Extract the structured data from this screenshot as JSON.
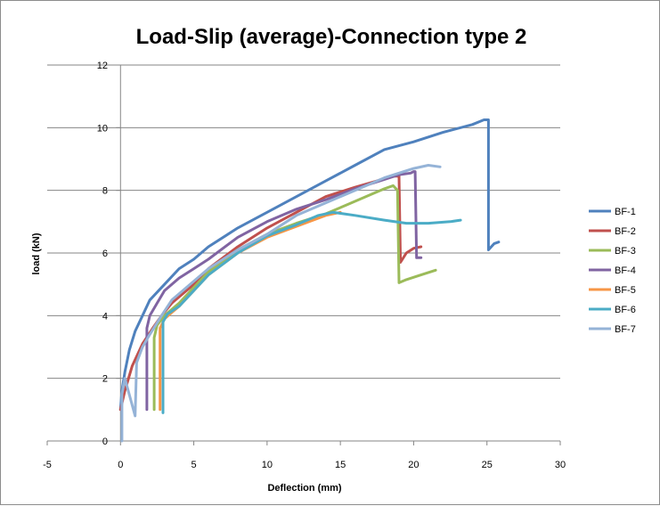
{
  "chart_data": {
    "type": "line",
    "title": "Load-Slip (average)-Connection type 2",
    "xlabel": "Deflection (mm)",
    "ylabel": "load (kN)",
    "xlim": [
      -5,
      30
    ],
    "ylim": [
      0,
      12
    ],
    "xticks": [
      "-5",
      "0",
      "5",
      "10",
      "15",
      "20",
      "25",
      "30"
    ],
    "yticks": [
      "0",
      "2",
      "4",
      "6",
      "8",
      "10",
      "12"
    ],
    "grid": "horizontal",
    "legend_position": "right",
    "series": [
      {
        "name": "BF-1",
        "color": "#4F81BD",
        "points": [
          [
            0,
            1.0
          ],
          [
            0.1,
            1.6
          ],
          [
            0.3,
            2.2
          ],
          [
            0.6,
            2.9
          ],
          [
            1.0,
            3.5
          ],
          [
            1.5,
            4.0
          ],
          [
            2.0,
            4.5
          ],
          [
            3.0,
            5.0
          ],
          [
            4.0,
            5.5
          ],
          [
            5.0,
            5.8
          ],
          [
            6.0,
            6.2
          ],
          [
            8.0,
            6.8
          ],
          [
            10.0,
            7.3
          ],
          [
            12.0,
            7.8
          ],
          [
            14.0,
            8.3
          ],
          [
            16.0,
            8.8
          ],
          [
            18.0,
            9.3
          ],
          [
            20.0,
            9.55
          ],
          [
            22.0,
            9.85
          ],
          [
            24.0,
            10.1
          ],
          [
            24.8,
            10.25
          ],
          [
            25.1,
            10.25
          ],
          [
            25.1,
            6.1
          ],
          [
            25.5,
            6.3
          ],
          [
            25.8,
            6.35
          ]
        ]
      },
      {
        "name": "BF-2",
        "color": "#C0504D",
        "points": [
          [
            0,
            1.0
          ],
          [
            0.3,
            1.6
          ],
          [
            0.8,
            2.4
          ],
          [
            1.5,
            3.1
          ],
          [
            2.2,
            3.6
          ],
          [
            2.8,
            4.0
          ],
          [
            3.5,
            4.4
          ],
          [
            4.0,
            4.6
          ],
          [
            5.0,
            5.0
          ],
          [
            6.0,
            5.5
          ],
          [
            8.0,
            6.2
          ],
          [
            10.0,
            6.8
          ],
          [
            12.0,
            7.3
          ],
          [
            14.0,
            7.8
          ],
          [
            16.0,
            8.1
          ],
          [
            17.5,
            8.3
          ],
          [
            18.5,
            8.45
          ],
          [
            19.0,
            8.45
          ],
          [
            19.1,
            5.7
          ],
          [
            19.5,
            6.0
          ],
          [
            20.0,
            6.15
          ],
          [
            20.5,
            6.2
          ]
        ]
      },
      {
        "name": "BF-3",
        "color": "#9BBB59",
        "points": [
          [
            2.3,
            1.0
          ],
          [
            2.3,
            3.3
          ],
          [
            2.5,
            3.7
          ],
          [
            3.0,
            4.0
          ],
          [
            4.0,
            4.4
          ],
          [
            5.0,
            4.9
          ],
          [
            6.0,
            5.4
          ],
          [
            8.0,
            6.1
          ],
          [
            10.0,
            6.6
          ],
          [
            12.0,
            6.95
          ],
          [
            14.0,
            7.25
          ],
          [
            15.5,
            7.55
          ],
          [
            17.0,
            7.85
          ],
          [
            18.0,
            8.05
          ],
          [
            18.6,
            8.15
          ],
          [
            18.9,
            8.0
          ],
          [
            19.0,
            5.05
          ],
          [
            19.5,
            5.15
          ],
          [
            20.5,
            5.3
          ],
          [
            21.5,
            5.45
          ]
        ]
      },
      {
        "name": "BF-4",
        "color": "#8064A2",
        "points": [
          [
            1.8,
            1.0
          ],
          [
            1.8,
            3.6
          ],
          [
            2.0,
            4.0
          ],
          [
            2.5,
            4.4
          ],
          [
            3.0,
            4.8
          ],
          [
            4.0,
            5.2
          ],
          [
            5.0,
            5.5
          ],
          [
            6.0,
            5.8
          ],
          [
            8.0,
            6.5
          ],
          [
            10.0,
            7.0
          ],
          [
            12.0,
            7.4
          ],
          [
            14.0,
            7.7
          ],
          [
            16.0,
            8.05
          ],
          [
            18.0,
            8.35
          ],
          [
            19.0,
            8.5
          ],
          [
            19.8,
            8.55
          ],
          [
            20.0,
            8.6
          ],
          [
            20.1,
            8.6
          ],
          [
            20.2,
            5.85
          ],
          [
            20.5,
            5.85
          ]
        ]
      },
      {
        "name": "BF-5",
        "color": "#F79646",
        "points": [
          [
            2.7,
            1.0
          ],
          [
            2.7,
            3.6
          ],
          [
            3.0,
            3.9
          ],
          [
            3.5,
            4.1
          ],
          [
            4.0,
            4.3
          ],
          [
            5.0,
            4.8
          ],
          [
            6.0,
            5.3
          ],
          [
            8.0,
            6.0
          ],
          [
            10.0,
            6.5
          ],
          [
            12.0,
            6.85
          ],
          [
            14.0,
            7.2
          ],
          [
            15.0,
            7.3
          ]
        ]
      },
      {
        "name": "BF-6",
        "color": "#4BACC6",
        "points": [
          [
            2.9,
            0.9
          ],
          [
            2.9,
            3.8
          ],
          [
            3.2,
            4.05
          ],
          [
            4.0,
            4.3
          ],
          [
            5.0,
            4.8
          ],
          [
            6.0,
            5.3
          ],
          [
            8.0,
            6.0
          ],
          [
            10.0,
            6.55
          ],
          [
            12.0,
            6.9
          ],
          [
            13.5,
            7.2
          ],
          [
            14.5,
            7.3
          ],
          [
            16.0,
            7.2
          ],
          [
            18.0,
            7.05
          ],
          [
            19.5,
            6.95
          ],
          [
            21.0,
            6.95
          ],
          [
            22.5,
            7.0
          ],
          [
            23.2,
            7.05
          ]
        ]
      },
      {
        "name": "BF-7",
        "color": "#95B3D7",
        "points": [
          [
            0.1,
            0
          ],
          [
            0.1,
            1.5
          ],
          [
            0.3,
            2.0
          ],
          [
            1.0,
            0.8
          ],
          [
            1.1,
            2.5
          ],
          [
            1.5,
            3.0
          ],
          [
            2.0,
            3.4
          ],
          [
            2.8,
            4.0
          ],
          [
            3.5,
            4.5
          ],
          [
            4.0,
            4.7
          ],
          [
            5.0,
            5.1
          ],
          [
            6.0,
            5.5
          ],
          [
            8.0,
            6.1
          ],
          [
            10.0,
            6.6
          ],
          [
            12.0,
            7.2
          ],
          [
            14.0,
            7.6
          ],
          [
            16.0,
            8.0
          ],
          [
            18.0,
            8.4
          ],
          [
            20.0,
            8.7
          ],
          [
            21.0,
            8.8
          ],
          [
            21.8,
            8.75
          ]
        ]
      }
    ]
  }
}
